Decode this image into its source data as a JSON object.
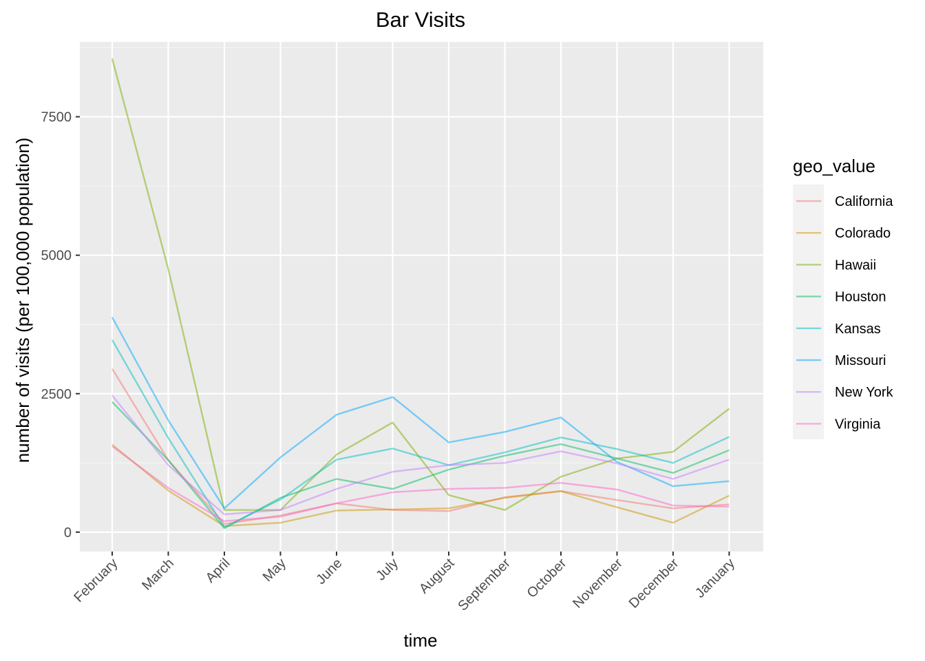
{
  "chart_data": {
    "type": "line",
    "title": "Bar Visits",
    "xlabel": "time",
    "ylabel": "number of visits (per 100,000 population)",
    "categories": [
      "February",
      "March",
      "April",
      "May",
      "June",
      "July",
      "August",
      "September",
      "October",
      "November",
      "December",
      "January"
    ],
    "yticks": [
      0,
      2500,
      5000,
      7500
    ],
    "ytick_labels": [
      "0",
      "2500",
      "5000",
      "7500"
    ],
    "ylim": [
      -350,
      8850
    ],
    "grid": true,
    "legend": {
      "title": "geo_value",
      "position": "right"
    },
    "series": [
      {
        "name": "California",
        "color": "#F8766D",
        "values": [
          2950,
          1300,
          150,
          300,
          520,
          400,
          380,
          630,
          740,
          580,
          430,
          500
        ]
      },
      {
        "name": "Colorado",
        "color": "#CD9600",
        "values": [
          1580,
          750,
          110,
          170,
          390,
          410,
          430,
          620,
          740,
          450,
          170,
          660
        ]
      },
      {
        "name": "Hawaii",
        "color": "#7CAE00",
        "values": [
          8550,
          4750,
          400,
          400,
          1400,
          1980,
          670,
          400,
          1000,
          1330,
          1450,
          2230
        ]
      },
      {
        "name": "Houston",
        "color": "#00BE67",
        "values": [
          2350,
          1300,
          70,
          620,
          960,
          780,
          1130,
          1380,
          1590,
          1330,
          1070,
          1480
        ]
      },
      {
        "name": "Kansas",
        "color": "#00BFC4",
        "values": [
          3470,
          1700,
          90,
          590,
          1310,
          1510,
          1210,
          1440,
          1710,
          1500,
          1250,
          1720
        ]
      },
      {
        "name": "Missouri",
        "color": "#00A9FF",
        "values": [
          3880,
          2020,
          430,
          1350,
          2120,
          2440,
          1620,
          1810,
          2070,
          1270,
          830,
          920
        ]
      },
      {
        "name": "New York",
        "color": "#C77CFF",
        "values": [
          2470,
          1210,
          320,
          400,
          780,
          1090,
          1210,
          1250,
          1460,
          1240,
          960,
          1310
        ]
      },
      {
        "name": "Virginia",
        "color": "#FF61CC",
        "values": [
          1550,
          800,
          200,
          280,
          520,
          720,
          780,
          800,
          890,
          770,
          480,
          460
        ]
      }
    ]
  }
}
